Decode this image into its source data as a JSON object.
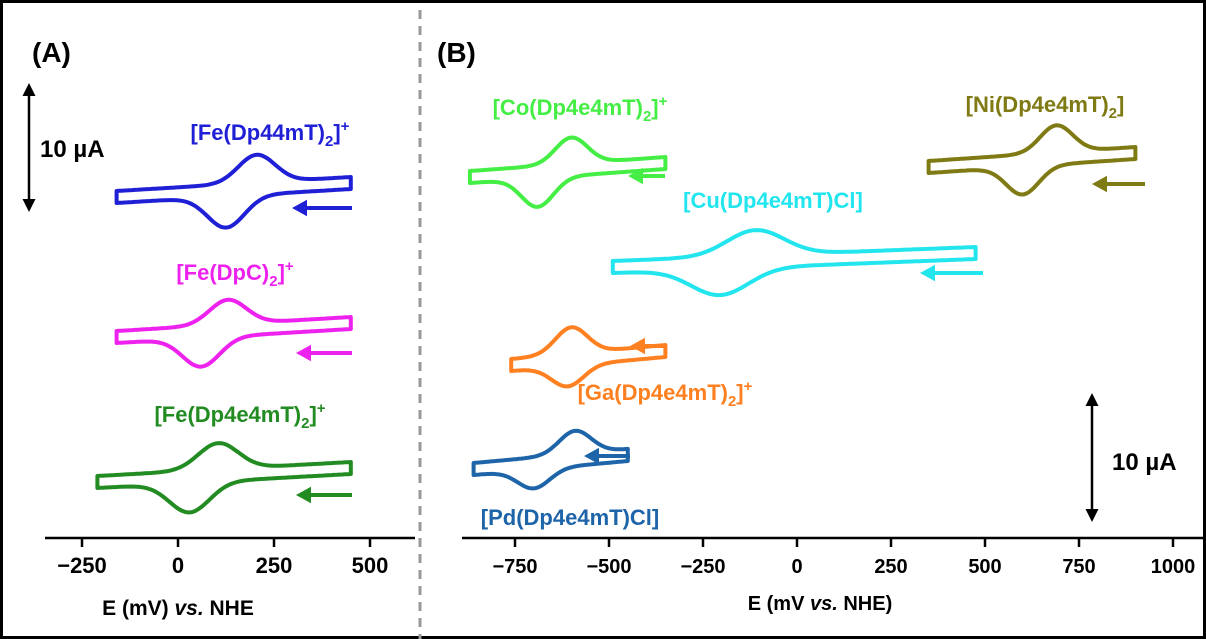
{
  "chart_data": [
    {
      "panel_label": "(A)",
      "type": "line",
      "xlabel_parts": [
        "E (mV) ",
        "vs.",
        " NHE"
      ],
      "xlim": [
        -300,
        540
      ],
      "xticks": [
        -250,
        0,
        250,
        500
      ],
      "xtick_labels": [
        "−250",
        "0",
        "250",
        "500"
      ],
      "scale_bar_label": "10 µA",
      "scale_bar_uA": 10,
      "series": [
        {
          "name_parts": [
            "[Fe(Dp44mT)",
            "2",
            "]",
            "+"
          ],
          "color": "#1f1fd6",
          "pa_mV": 205,
          "pc_mV": 125,
          "e_min_mV": -160,
          "e_max_mV": 450,
          "cathodic_peak_uA": 3.4,
          "anodic_peak_uA": 3.8,
          "baseline_uA": 0.0
        },
        {
          "name_parts": [
            "[Fe(DpC)",
            "2",
            "]",
            "+"
          ],
          "color": "#ee22ee",
          "pa_mV": 130,
          "pc_mV": 60,
          "e_min_mV": -160,
          "e_max_mV": 450,
          "cathodic_peak_uA": 3.0,
          "anodic_peak_uA": 3.5,
          "baseline_uA": 0.0
        },
        {
          "name_parts": [
            "[Fe(Dp4e4mT)",
            "2",
            "]",
            "+"
          ],
          "color": "#228b22",
          "pa_mV": 105,
          "pc_mV": 30,
          "e_min_mV": -210,
          "e_max_mV": 450,
          "cathodic_peak_uA": 3.2,
          "anodic_peak_uA": 3.6,
          "baseline_uA": 0.0
        }
      ]
    },
    {
      "panel_label": "(B)",
      "type": "line",
      "xlabel_parts": [
        "E (mV ",
        "vs.",
        " NHE)"
      ],
      "xlim": [
        -880,
        1010
      ],
      "xticks": [
        -750,
        -500,
        -250,
        0,
        250,
        500,
        750,
        1000
      ],
      "xtick_labels": [
        "−750",
        "−500",
        "−250",
        "0",
        "250",
        "500",
        "750",
        "1000"
      ],
      "scale_bar_label": "10 µA",
      "scale_bar_uA": 10,
      "series": [
        {
          "name_parts": [
            "[Co(Dp4e4mT)",
            "2",
            "]",
            "+"
          ],
          "color": "#44ee44",
          "pa_mV": -600,
          "pc_mV": -690,
          "e_min_mV": -870,
          "e_max_mV": -350,
          "cathodic_peak_uA": 3.2,
          "anodic_peak_uA": 3.5,
          "baseline_uA": 0.0
        },
        {
          "name_parts": [
            "[Ni(Dp4e4mT)",
            "2",
            "]",
            ""
          ],
          "color": "#7f7a14",
          "pa_mV": 690,
          "pc_mV": 600,
          "e_min_mV": 350,
          "e_max_mV": 900,
          "cathodic_peak_uA": 3.3,
          "anodic_peak_uA": 3.4,
          "baseline_uA": 0.0
        },
        {
          "name_parts": [
            "[Cu(Dp4e4mT)Cl]",
            "",
            "",
            ""
          ],
          "color": "#22e5ee",
          "pa_mV": -110,
          "pc_mV": -205,
          "e_min_mV": -490,
          "e_max_mV": 475,
          "cathodic_peak_uA": 3.1,
          "anodic_peak_uA": 3.2,
          "baseline_uA": 0.0
        },
        {
          "name_parts": [
            "[Ga(Dp4e4mT)",
            "2",
            "]",
            "+"
          ],
          "color": "#ff8020",
          "pa_mV": -600,
          "pc_mV": -610,
          "e_min_mV": -760,
          "e_max_mV": -350,
          "cathodic_peak_uA": 3.2,
          "anodic_peak_uA": 2.5,
          "baseline_uA": 0.0
        },
        {
          "name_parts": [
            "[Pd(Dp4e4mT)Cl]",
            "",
            "",
            ""
          ],
          "color": "#1e64a8",
          "pa_mV": -590,
          "pc_mV": -700,
          "e_min_mV": -860,
          "e_max_mV": -450,
          "cathodic_peak_uA": 2.8,
          "anodic_peak_uA": 2.3,
          "baseline_uA": 0.0
        }
      ]
    }
  ]
}
